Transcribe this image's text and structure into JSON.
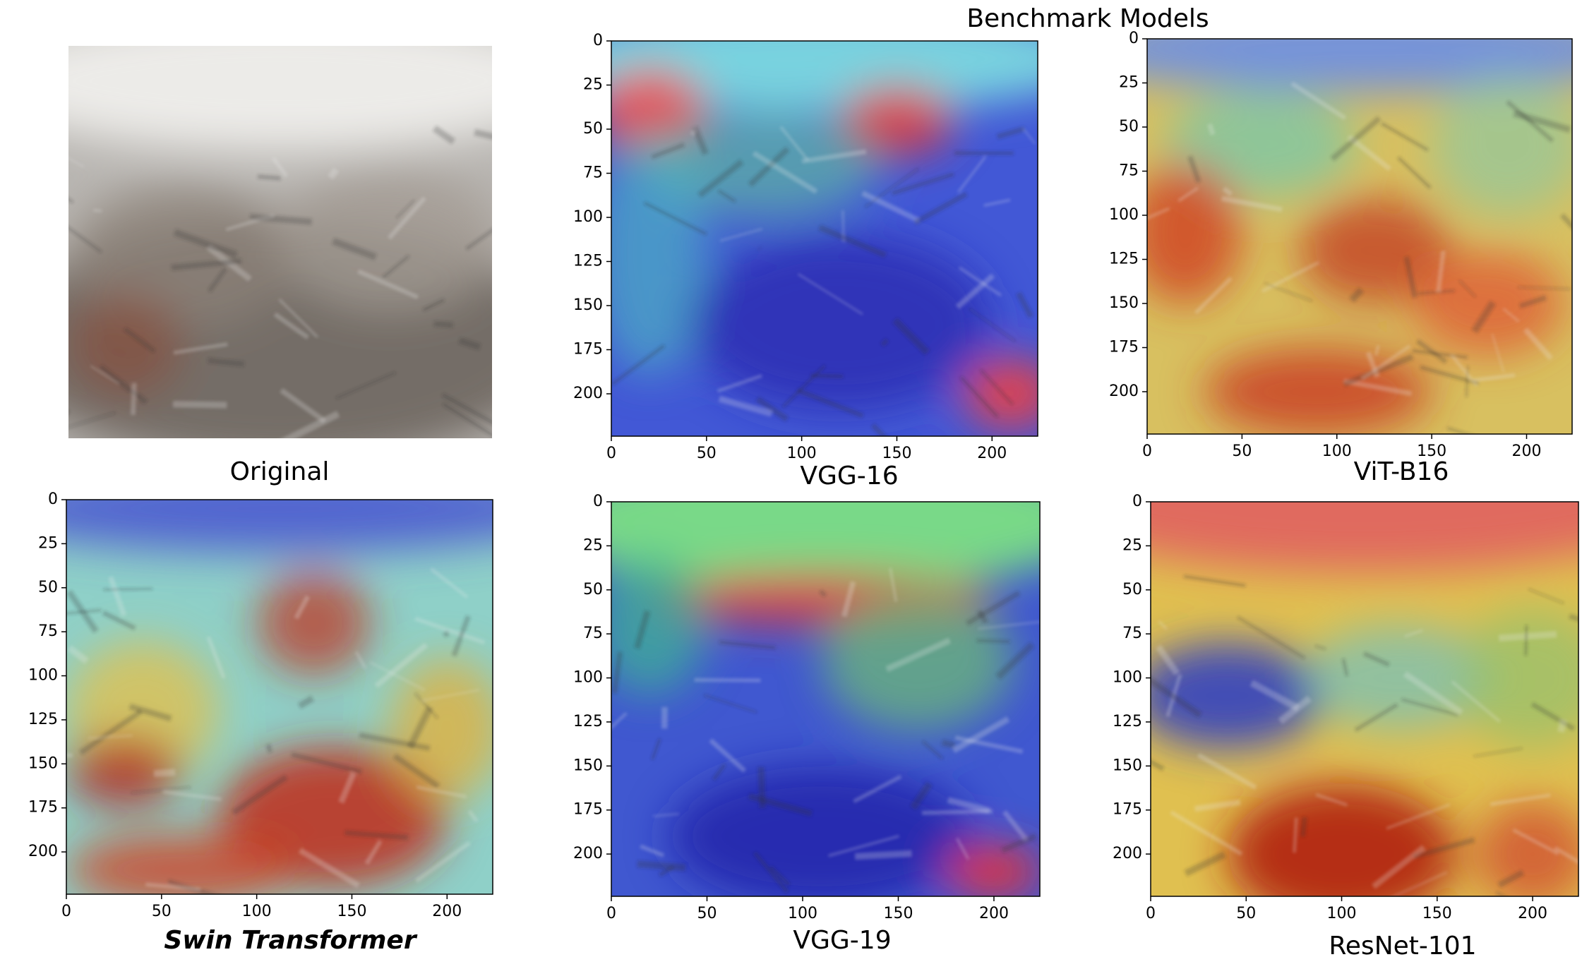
{
  "title": "Benchmark Models",
  "panels": [
    {
      "label": "Original"
    },
    {
      "label": "VGG-16",
      "xlim": [
        0,
        224
      ],
      "ylim": [
        224,
        0
      ],
      "xticks": [
        0,
        50,
        100,
        150,
        200
      ],
      "yticks": [
        0,
        25,
        50,
        75,
        100,
        125,
        150,
        175,
        200
      ]
    },
    {
      "label": "ViT-B16",
      "xlim": [
        0,
        224
      ],
      "ylim": [
        224,
        0
      ],
      "xticks": [
        0,
        50,
        100,
        150,
        200
      ],
      "yticks": [
        0,
        25,
        50,
        75,
        100,
        125,
        150,
        175,
        200
      ]
    },
    {
      "label": "Swin Transformer",
      "xlim": [
        0,
        224
      ],
      "ylim": [
        224,
        0
      ],
      "xticks": [
        0,
        50,
        100,
        150,
        200
      ],
      "yticks": [
        0,
        25,
        50,
        75,
        100,
        125,
        150,
        175,
        200
      ]
    },
    {
      "label": "VGG-19",
      "xlim": [
        0,
        224
      ],
      "ylim": [
        224,
        0
      ],
      "xticks": [
        0,
        50,
        100,
        150,
        200
      ],
      "yticks": [
        0,
        25,
        50,
        75,
        100,
        125,
        150,
        175,
        200
      ]
    },
    {
      "label": "ResNet-101",
      "xlim": [
        0,
        224
      ],
      "ylim": [
        224,
        0
      ],
      "xticks": [
        0,
        50,
        100,
        150,
        200
      ],
      "yticks": [
        0,
        25,
        50,
        75,
        100,
        125,
        150,
        175,
        200
      ]
    }
  ]
}
